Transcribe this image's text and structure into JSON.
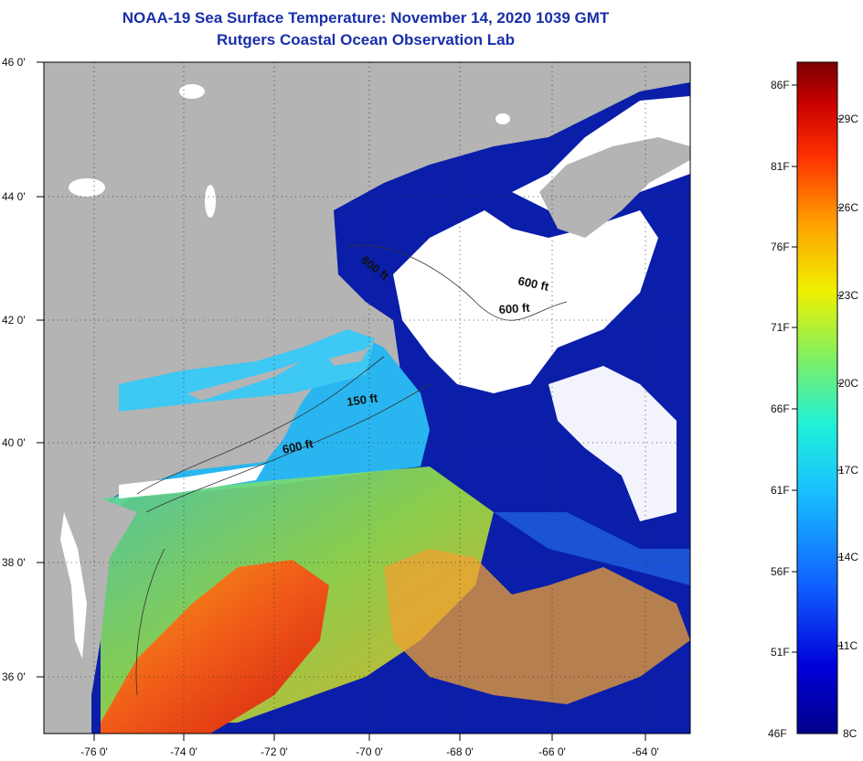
{
  "header": {
    "title_line1": "NOAA-19 Sea Surface Temperature:  November 14, 2020 1039 GMT",
    "title_line2": "Rutgers Coastal Ocean Observation Lab"
  },
  "map": {
    "lat_labels": [
      "46 0'",
      "44 0'",
      "42 0'",
      "40 0'",
      "38 0'",
      "36 0'"
    ],
    "lon_labels": [
      "-76 0'",
      "-74 0'",
      "-72 0'",
      "-70 0'",
      "-68 0'",
      "-66 0'",
      "-64 0'"
    ],
    "isobaths": [
      {
        "text": "600 ft",
        "id": "maine"
      },
      {
        "text": "600 ft",
        "id": "georges-n"
      },
      {
        "text": "600 ft",
        "id": "georges-s"
      },
      {
        "text": "150 ft",
        "id": "shelf-150"
      },
      {
        "text": "600 ft",
        "id": "shelf-600"
      }
    ],
    "colors": {
      "land": "#b4b4b4",
      "cloud": "#ffffff",
      "cold": "#0a1eaa",
      "shelf": "#29b6f0",
      "warm": "#e8401a"
    }
  },
  "colorbar": {
    "fahrenheit": [
      "86F",
      "81F",
      "76F",
      "71F",
      "66F",
      "61F",
      "56F",
      "51F",
      "46F"
    ],
    "celsius": [
      "29C",
      "26C",
      "23C",
      "20C",
      "17C",
      "14C",
      "11C",
      "8C"
    ],
    "scale_colors": [
      "#00008c",
      "#0000d8",
      "#1060ff",
      "#18c0ff",
      "#20f0d8",
      "#80f060",
      "#f0f000",
      "#ffa000",
      "#ff3000",
      "#c80000",
      "#7a0000"
    ]
  }
}
